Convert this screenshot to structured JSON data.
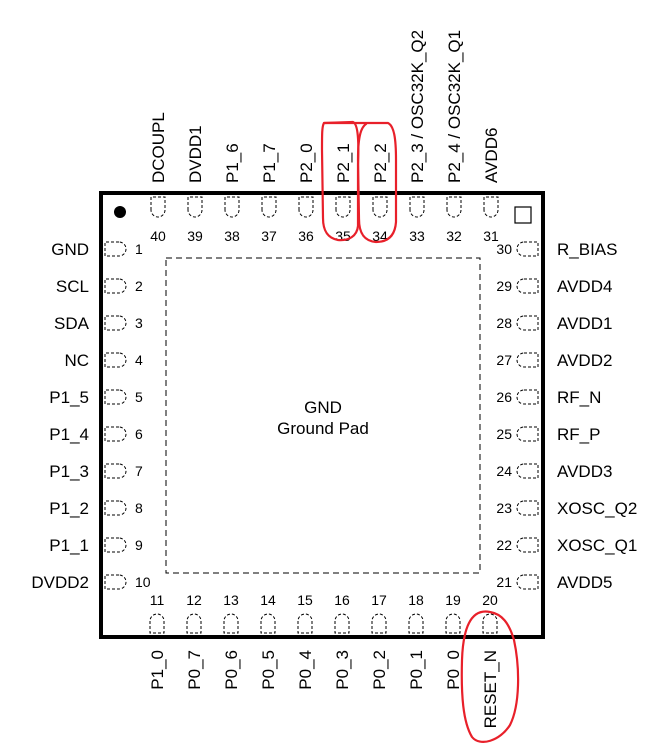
{
  "package": {
    "center_label_1": "GND",
    "center_label_2": "Ground Pad"
  },
  "pins": {
    "left": [
      {
        "num": "1",
        "name": "GND"
      },
      {
        "num": "2",
        "name": "SCL"
      },
      {
        "num": "3",
        "name": "SDA"
      },
      {
        "num": "4",
        "name": "NC"
      },
      {
        "num": "5",
        "name": "P1_5"
      },
      {
        "num": "6",
        "name": "P1_4"
      },
      {
        "num": "7",
        "name": "P1_3"
      },
      {
        "num": "8",
        "name": "P1_2"
      },
      {
        "num": "9",
        "name": "P1_1"
      },
      {
        "num": "10",
        "name": "DVDD2"
      }
    ],
    "bottom": [
      {
        "num": "11",
        "name": "P1_0"
      },
      {
        "num": "12",
        "name": "P0_7"
      },
      {
        "num": "13",
        "name": "P0_6"
      },
      {
        "num": "14",
        "name": "P0_5"
      },
      {
        "num": "15",
        "name": "P0_4"
      },
      {
        "num": "16",
        "name": "P0_3"
      },
      {
        "num": "17",
        "name": "P0_2"
      },
      {
        "num": "18",
        "name": "P0_1"
      },
      {
        "num": "19",
        "name": "P0_0"
      },
      {
        "num": "20",
        "name": "RESET_N"
      }
    ],
    "right": [
      {
        "num": "21",
        "name": "AVDD5"
      },
      {
        "num": "22",
        "name": "XOSC_Q1"
      },
      {
        "num": "23",
        "name": "XOSC_Q2"
      },
      {
        "num": "24",
        "name": "AVDD3"
      },
      {
        "num": "25",
        "name": "RF_P"
      },
      {
        "num": "26",
        "name": "RF_N"
      },
      {
        "num": "27",
        "name": "AVDD2"
      },
      {
        "num": "28",
        "name": "AVDD1"
      },
      {
        "num": "29",
        "name": "AVDD4"
      },
      {
        "num": "30",
        "name": "R_BIAS"
      }
    ],
    "top": [
      {
        "num": "31",
        "name": "AVDD6"
      },
      {
        "num": "32",
        "name": "P2_4 / OSC32K_Q1"
      },
      {
        "num": "33",
        "name": "P2_3 / OSC32K_Q2"
      },
      {
        "num": "34",
        "name": "P2_2"
      },
      {
        "num": "35",
        "name": "P2_1"
      },
      {
        "num": "36",
        "name": "P2_0"
      },
      {
        "num": "37",
        "name": "P1_7"
      },
      {
        "num": "38",
        "name": "P1_6"
      },
      {
        "num": "39",
        "name": "DVDD1"
      },
      {
        "num": "40",
        "name": "DCOUPL"
      }
    ]
  },
  "annotations": [
    {
      "target": "P2_1",
      "color": "#e8202a"
    },
    {
      "target": "P2_2",
      "color": "#e8202a"
    },
    {
      "target": "RESET_N",
      "color": "#e8202a"
    }
  ],
  "colors": {
    "outline": "#000000",
    "annotation": "#e8202a"
  },
  "icons": [
    "pin1-dot-icon",
    "corner-square-icon"
  ]
}
